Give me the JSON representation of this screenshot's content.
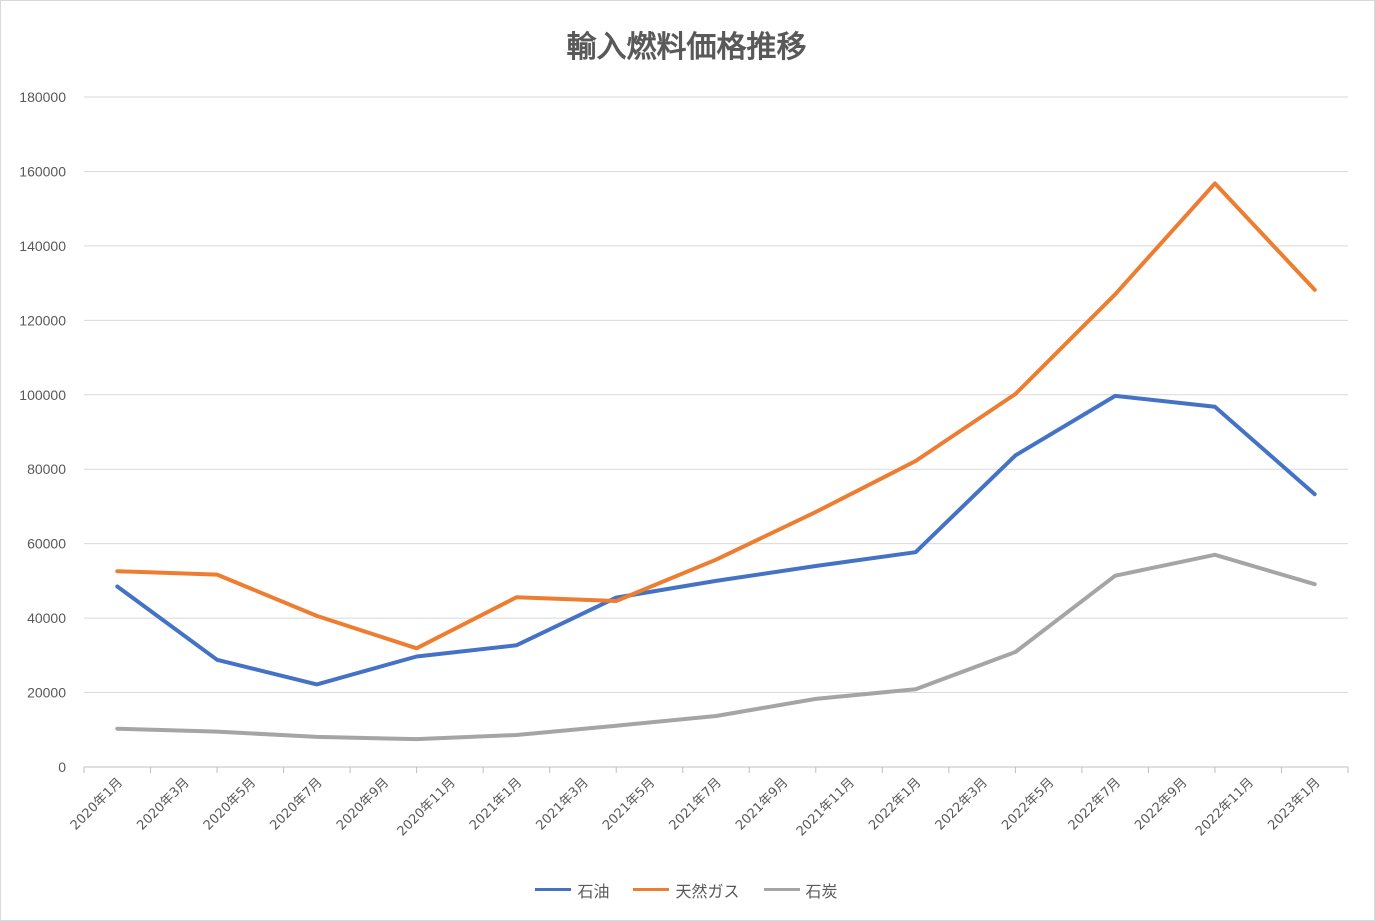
{
  "chart_data": {
    "type": "line",
    "title": "輸入燃料価格推移",
    "xlabel": "",
    "ylabel": "",
    "ylim": [
      0,
      180000
    ],
    "yticks": [
      0,
      20000,
      40000,
      60000,
      80000,
      100000,
      120000,
      140000,
      160000,
      180000
    ],
    "x_range": [
      "2020-01",
      "2023-01"
    ],
    "x_tick_labels": [
      "2020年1月",
      "2020年3月",
      "2020年5月",
      "2020年7月",
      "2020年9月",
      "2020年11月",
      "2021年1月",
      "2021年3月",
      "2021年5月",
      "2021年7月",
      "2021年9月",
      "2021年11月",
      "2022年1月",
      "2022年3月",
      "2022年5月",
      "2022年7月",
      "2022年9月",
      "2022年11月",
      "2023年1月"
    ],
    "grid": true,
    "legend_position": "bottom",
    "series": [
      {
        "name": "石油",
        "color": "#4472C4",
        "points": [
          {
            "x": "2020-01",
            "y": 48500
          },
          {
            "x": "2020-04",
            "y": 28800
          },
          {
            "x": "2020-07",
            "y": 22200
          },
          {
            "x": "2020-10",
            "y": 29700
          },
          {
            "x": "2021-01",
            "y": 32700
          },
          {
            "x": "2021-04",
            "y": 45500
          },
          {
            "x": "2021-07",
            "y": 50000
          },
          {
            "x": "2021-10",
            "y": 54000
          },
          {
            "x": "2022-01",
            "y": 57700
          },
          {
            "x": "2022-04",
            "y": 83700
          },
          {
            "x": "2022-07",
            "y": 99700
          },
          {
            "x": "2022-10",
            "y": 96800
          },
          {
            "x": "2023-01",
            "y": 73300
          }
        ]
      },
      {
        "name": "天然ガス",
        "color": "#ED7D31",
        "points": [
          {
            "x": "2020-01",
            "y": 52600
          },
          {
            "x": "2020-04",
            "y": 51700
          },
          {
            "x": "2020-07",
            "y": 40600
          },
          {
            "x": "2020-10",
            "y": 31900
          },
          {
            "x": "2021-01",
            "y": 45600
          },
          {
            "x": "2021-04",
            "y": 44600
          },
          {
            "x": "2021-07",
            "y": 55700
          },
          {
            "x": "2021-10",
            "y": 68500
          },
          {
            "x": "2022-01",
            "y": 82200
          },
          {
            "x": "2022-04",
            "y": 100200
          },
          {
            "x": "2022-07",
            "y": 127000
          },
          {
            "x": "2022-10",
            "y": 156800
          },
          {
            "x": "2023-01",
            "y": 128200
          }
        ]
      },
      {
        "name": "石炭",
        "color": "#A5A5A5",
        "points": [
          {
            "x": "2020-01",
            "y": 10300
          },
          {
            "x": "2020-04",
            "y": 9500
          },
          {
            "x": "2020-07",
            "y": 8100
          },
          {
            "x": "2020-10",
            "y": 7500
          },
          {
            "x": "2021-01",
            "y": 8600
          },
          {
            "x": "2021-04",
            "y": 11100
          },
          {
            "x": "2021-07",
            "y": 13700
          },
          {
            "x": "2021-10",
            "y": 18300
          },
          {
            "x": "2022-01",
            "y": 20900
          },
          {
            "x": "2022-04",
            "y": 30900
          },
          {
            "x": "2022-07",
            "y": 51400
          },
          {
            "x": "2022-10",
            "y": 57000
          },
          {
            "x": "2023-01",
            "y": 49100
          }
        ]
      }
    ]
  }
}
